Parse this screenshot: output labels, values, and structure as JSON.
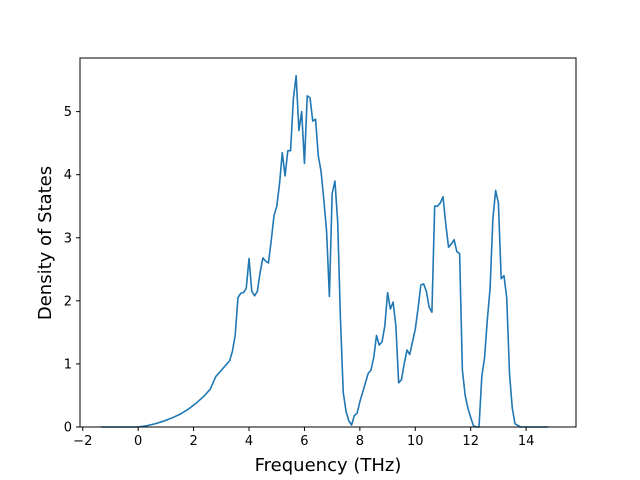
{
  "chart_data": {
    "type": "line",
    "title": "",
    "xlabel": "Frequency (THz)",
    "ylabel": "Density of States",
    "xlim": [
      -2.1,
      15.8
    ],
    "ylim": [
      0,
      5.85
    ],
    "xticks": [
      -2,
      0,
      2,
      4,
      6,
      8,
      10,
      12,
      14
    ],
    "yticks": [
      0,
      1,
      2,
      3,
      4,
      5
    ],
    "grid": false,
    "line_color": "#1f77b4",
    "series": [
      {
        "x": [
          -1.35,
          -1.0,
          -0.5,
          0.0,
          0.3,
          0.6,
          0.9,
          1.2,
          1.5,
          1.8,
          2.1,
          2.4,
          2.6,
          2.8,
          3.0,
          3.2,
          3.3,
          3.4,
          3.5,
          3.6,
          3.7,
          3.8,
          3.9,
          4.0,
          4.1,
          4.2,
          4.3,
          4.4,
          4.5,
          4.6,
          4.7,
          4.8,
          4.9,
          5.0,
          5.1,
          5.2,
          5.3,
          5.4,
          5.5,
          5.6,
          5.7,
          5.8,
          5.9,
          6.0,
          6.1,
          6.2,
          6.3,
          6.4,
          6.5,
          6.6,
          6.7,
          6.8,
          6.9,
          7.0,
          7.1,
          7.2,
          7.3,
          7.4,
          7.5,
          7.6,
          7.7,
          7.8,
          7.9,
          8.0,
          8.1,
          8.2,
          8.3,
          8.4,
          8.5,
          8.6,
          8.7,
          8.8,
          8.9,
          9.0,
          9.1,
          9.2,
          9.3,
          9.4,
          9.5,
          9.6,
          9.7,
          9.8,
          9.9,
          10.0,
          10.1,
          10.2,
          10.3,
          10.4,
          10.5,
          10.6,
          10.7,
          10.8,
          10.9,
          11.0,
          11.1,
          11.2,
          11.3,
          11.4,
          11.5,
          11.6,
          11.7,
          11.8,
          11.9,
          12.0,
          12.1,
          12.2,
          12.3,
          12.4,
          12.5,
          12.6,
          12.7,
          12.8,
          12.9,
          13.0,
          13.1,
          13.2,
          13.3,
          13.4,
          13.5,
          13.6,
          13.8,
          14.2,
          14.8
        ],
        "y": [
          0.0,
          0.0,
          0.0,
          0.0,
          0.02,
          0.05,
          0.09,
          0.14,
          0.2,
          0.28,
          0.38,
          0.5,
          0.6,
          0.8,
          0.9,
          1.0,
          1.05,
          1.2,
          1.45,
          2.05,
          2.12,
          2.13,
          2.2,
          2.67,
          2.15,
          2.08,
          2.15,
          2.45,
          2.68,
          2.63,
          2.6,
          2.95,
          3.35,
          3.5,
          3.85,
          4.35,
          3.98,
          4.38,
          4.38,
          5.2,
          5.57,
          4.7,
          5.0,
          4.18,
          5.25,
          5.22,
          4.85,
          4.88,
          4.3,
          4.05,
          3.6,
          3.1,
          2.07,
          3.7,
          3.9,
          3.25,
          1.7,
          0.55,
          0.25,
          0.1,
          0.03,
          0.18,
          0.22,
          0.4,
          0.55,
          0.7,
          0.85,
          0.9,
          1.1,
          1.45,
          1.3,
          1.35,
          1.6,
          2.13,
          1.87,
          1.98,
          1.6,
          0.7,
          0.75,
          1.0,
          1.22,
          1.15,
          1.35,
          1.55,
          1.88,
          2.25,
          2.27,
          2.15,
          1.9,
          1.82,
          3.5,
          3.5,
          3.55,
          3.65,
          3.22,
          2.85,
          2.9,
          2.97,
          2.78,
          2.75,
          0.9,
          0.5,
          0.3,
          0.15,
          0.02,
          0.0,
          0.0,
          0.8,
          1.1,
          1.7,
          2.2,
          3.3,
          3.75,
          3.55,
          2.35,
          2.4,
          2.05,
          0.85,
          0.3,
          0.05,
          0.0,
          0.0,
          0.0
        ]
      }
    ]
  }
}
